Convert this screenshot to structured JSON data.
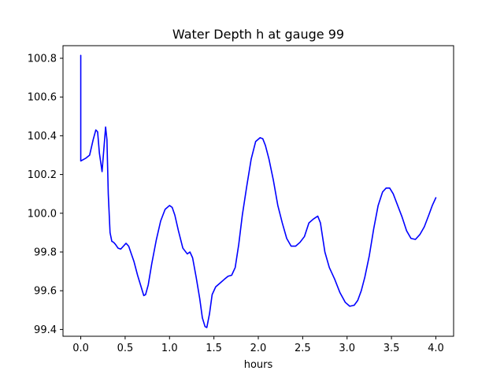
{
  "chart_data": {
    "type": "line",
    "title": "Water Depth h at gauge 99",
    "xlabel": "hours",
    "ylabel": "",
    "xlim": [
      -0.2,
      4.2
    ],
    "ylim": [
      99.365,
      100.865
    ],
    "x_ticks": [
      0.0,
      0.5,
      1.0,
      1.5,
      2.0,
      2.5,
      3.0,
      3.5,
      4.0
    ],
    "x_tick_labels": [
      "0.0",
      "0.5",
      "1.0",
      "1.5",
      "2.0",
      "2.5",
      "3.0",
      "3.5",
      "4.0"
    ],
    "y_ticks": [
      99.4,
      99.6,
      99.8,
      100.0,
      100.2,
      100.4,
      100.6,
      100.8
    ],
    "y_tick_labels": [
      "99.4",
      "99.6",
      "99.8",
      "100.0",
      "100.2",
      "100.4",
      "100.6",
      "100.8"
    ],
    "grid": false,
    "series": [
      {
        "color": "#0000ff",
        "x": [
          0.0,
          0.0,
          0.0,
          0.02,
          0.06,
          0.1,
          0.14,
          0.17,
          0.19,
          0.21,
          0.24,
          0.26,
          0.28,
          0.295,
          0.31,
          0.33,
          0.35,
          0.37,
          0.39,
          0.42,
          0.45,
          0.48,
          0.51,
          0.54,
          0.57,
          0.6,
          0.64,
          0.68,
          0.71,
          0.73,
          0.76,
          0.8,
          0.85,
          0.9,
          0.95,
          1.0,
          1.03,
          1.06,
          1.1,
          1.15,
          1.2,
          1.23,
          1.26,
          1.3,
          1.34,
          1.37,
          1.4,
          1.42,
          1.45,
          1.48,
          1.52,
          1.57,
          1.62,
          1.66,
          1.7,
          1.74,
          1.78,
          1.82,
          1.87,
          1.92,
          1.97,
          2.02,
          2.05,
          2.08,
          2.12,
          2.17,
          2.22,
          2.27,
          2.32,
          2.37,
          2.42,
          2.47,
          2.52,
          2.57,
          2.62,
          2.67,
          2.7,
          2.72,
          2.75,
          2.8,
          2.86,
          2.92,
          2.98,
          3.03,
          3.08,
          3.12,
          3.16,
          3.2,
          3.25,
          3.3,
          3.35,
          3.4,
          3.44,
          3.48,
          3.52,
          3.57,
          3.62,
          3.67,
          3.72,
          3.77,
          3.82,
          3.87,
          3.92,
          3.96,
          4.0
        ],
        "y": [
          100.815,
          100.28,
          100.27,
          100.275,
          100.285,
          100.3,
          100.38,
          100.43,
          100.42,
          100.31,
          100.215,
          100.33,
          100.445,
          100.38,
          100.1,
          99.9,
          99.855,
          99.85,
          99.84,
          99.82,
          99.815,
          99.83,
          99.845,
          99.83,
          99.79,
          99.75,
          99.68,
          99.62,
          99.575,
          99.58,
          99.63,
          99.74,
          99.86,
          99.96,
          100.02,
          100.04,
          100.03,
          99.99,
          99.91,
          99.82,
          99.79,
          99.8,
          99.77,
          99.67,
          99.56,
          99.46,
          99.415,
          99.41,
          99.48,
          99.58,
          99.62,
          99.64,
          99.66,
          99.675,
          99.68,
          99.72,
          99.84,
          99.99,
          100.14,
          100.28,
          100.37,
          100.39,
          100.385,
          100.35,
          100.28,
          100.17,
          100.04,
          99.95,
          99.87,
          99.83,
          99.83,
          99.85,
          99.88,
          99.95,
          99.97,
          99.985,
          99.95,
          99.89,
          99.8,
          99.72,
          99.66,
          99.59,
          99.54,
          99.52,
          99.525,
          99.55,
          99.6,
          99.67,
          99.78,
          99.92,
          100.04,
          100.11,
          100.13,
          100.13,
          100.1,
          100.04,
          99.98,
          99.91,
          99.87,
          99.865,
          99.89,
          99.93,
          99.99,
          100.04,
          100.08
        ]
      }
    ]
  }
}
